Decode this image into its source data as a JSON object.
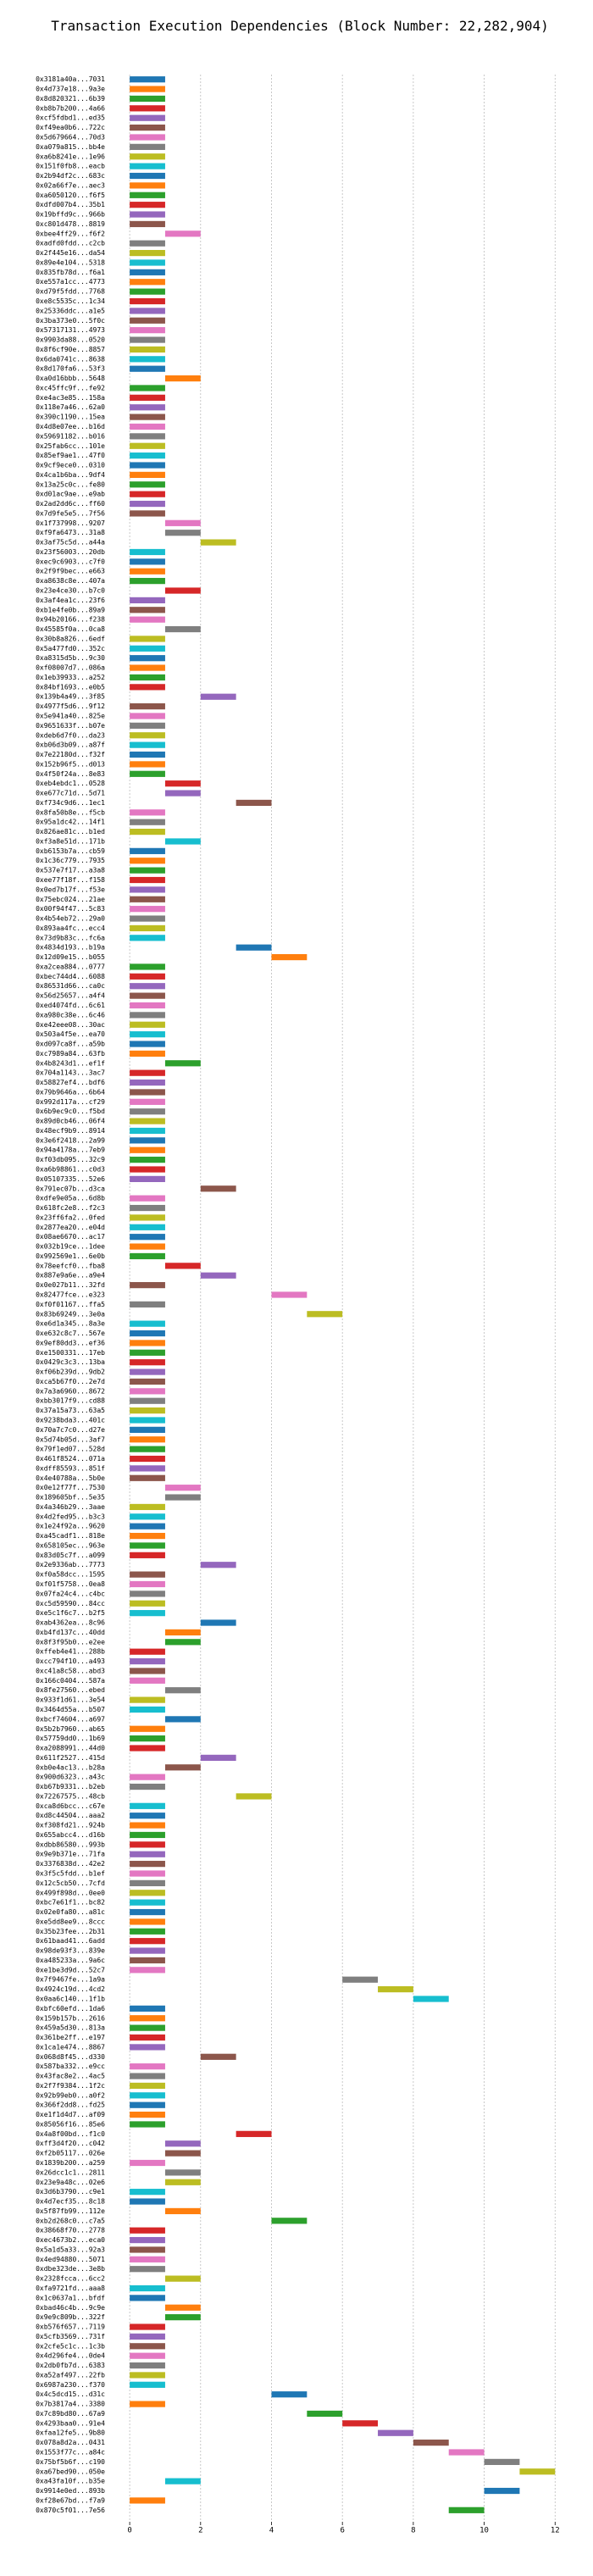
{
  "chart_data": {
    "type": "gantt",
    "title": "Transaction Execution Dependencies (Block Number: 22,282,904)",
    "categories": [
      "0x3181a40a...7031",
      "0x4d737e18...9a3e",
      "0x8d820321...6b39",
      "0xb8b7b200...4a66",
      "0xcf5fdbd1...ed35",
      "0xf49ea0b6...722c",
      "0x5d679664...70d3",
      "0xa079a815...bb4e",
      "0xa6b8241e...1e96",
      "0x151f0fb8...eacb",
      "0x2b94df2c...683c",
      "0x02a66f7e...aec3",
      "0xa6050120...f6f5",
      "0xdfd007b4...35b1",
      "0x19bffd9c...966b",
      "0xc801d478...8819",
      "0xbee4ff29...f6f2",
      "0xadfd0fdd...c2cb",
      "0x2f445e16...da54",
      "0x89e4e104...5318",
      "0x835fb78d...f6a1",
      "0xe557a1cc...4773",
      "0xd79f5fdd...7768",
      "0xe8c5535c...1c34",
      "0x25336ddc...a1e5",
      "0x3ba373e0...5f0c",
      "0x57317131...4973",
      "0x9903da88...0520",
      "0x8f6cf90e...8857",
      "0x6da0741c...8638",
      "0x8d170fa6...53f3",
      "0xa0d16bbb...5648",
      "0xc45ffc9f...fe92",
      "0xe4ac3e85...158a",
      "0x118e7a46...62a0",
      "0x390c1190...15ea",
      "0x4d8e07ee...b16d",
      "0x59691182...b016",
      "0x25fab6cc...101e",
      "0x85ef9ae1...47f0",
      "0x9cf9ece0...0310",
      "0x4ca1b6ba...9df4",
      "0x13a25c0c...fe80",
      "0xd01ac9ae...e9ab",
      "0x2ad2dd6c...ff60",
      "0x7d9fe5e5...7f56",
      "0x1f737998...9207",
      "0xf9fa6473...31a8",
      "0x3af75c5d...a44a",
      "0x23f56003...20db",
      "0xec9c6903...c7f0",
      "0x2f9f9bec...e663",
      "0xa8638c8e...407a",
      "0x23e4ce30...b7c0",
      "0x3af4ea1c...23f6",
      "0xb1e4fe0b...89a9",
      "0x94b20166...f238",
      "0x45585f0a...0ca8",
      "0x30b8a826...6edf",
      "0x5a477fd0...352c",
      "0xa8315d5b...9c30",
      "0xf08007d7...086a",
      "0x1eb39933...a252",
      "0x84bf1693...e0b5",
      "0x139b4a49...3f85",
      "0x4977f5d6...9f12",
      "0x5e941a40...825e",
      "0x9651633f...b07e",
      "0xdeb6d7f0...da23",
      "0xb06d3b09...a87f",
      "0x7e22180d...f32f",
      "0x152b96f5...d013",
      "0x4f50f24a...8e83",
      "0xeb4ebdc1...0528",
      "0xe677c71d...5d71",
      "0xf734c9d6...1ec1",
      "0x8fa50b8e...f5cb",
      "0x95a1dc42...14f1",
      "0x826ae81c...b1ed",
      "0xf3a8e51d...171b",
      "0xb6153b7a...cb59",
      "0x1c36c779...7935",
      "0x537e7f17...a3a8",
      "0xee77f18f...f158",
      "0x0ed7b17f...f53e",
      "0x75ebc024...21ae",
      "0x00f94f47...5c83",
      "0x4b54eb72...29a0",
      "0x893aa4fc...ecc4",
      "0x73d9b83c...fc6a",
      "0x4834d193...b19a",
      "0x12d09e15...b055",
      "0xa2cea884...0777",
      "0xbec744d4...6088",
      "0x86531d66...ca0c",
      "0x56d25657...a4f4",
      "0xed4074fd...6c61",
      "0xa980c38e...6c46",
      "0xe42eee08...30ac",
      "0x503a4f5e...ea70",
      "0xd097ca8f...a59b",
      "0xc7989a84...63fb",
      "0x4b8243d1...ef1f",
      "0x704a1143...3ac7",
      "0x58827ef4...bdf6",
      "0x79b9646a...6b64",
      "0x992d117a...cf29",
      "0x6b9ec9c0...f5bd",
      "0x89d0cb46...06f4",
      "0x48ecf9b9...8914",
      "0x3e6f2418...2a99",
      "0x94a4178a...7eb9",
      "0xf03db095...32c9",
      "0xa6b98861...c0d3",
      "0x05107335...52e6",
      "0x791ec07b...d3ca",
      "0xdfe9e05a...6d8b",
      "0x618fc2e8...f2c3",
      "0x23ff6fa2...0fed",
      "0x2877ea20...e04d",
      "0x08ae6670...ac17",
      "0x032b19ce...1dee",
      "0x992569e1...6e0b",
      "0x78eefcf0...fba8",
      "0x887e9a6e...a9e4",
      "0x0e027b11...32fd",
      "0x82477fce...e323",
      "0xf0f01167...ffa5",
      "0x83b69249...3e0a",
      "0xe6d1a345...8a3e",
      "0xe632c8c7...567e",
      "0x9ef80dd3...ef36",
      "0xe1500331...17eb",
      "0x0429c3c3...13ba",
      "0xf06b239d...9db2",
      "0xca5b67f0...2e7d",
      "0x7a3a6960...8672",
      "0xbb3017f9...cd88",
      "0x37a15a73...63a5",
      "0x9238bda3...401c",
      "0x70a7c7c0...d27e",
      "0x5d74b05d...3af7",
      "0x79f1ed07...528d",
      "0x461f8524...071a",
      "0xdff85593...851f",
      "0x4e40788a...5b0e",
      "0x0e12f77f...7530",
      "0x189605bf...5e35",
      "0x4a346b29...3aae",
      "0x4d2fed95...b3c3",
      "0x1e24f92a...9620",
      "0xa45cadf1...818e",
      "0x658105ec...963e",
      "0x83d05c7f...a099",
      "0x2e9336ab...7773",
      "0xf0a58dcc...1595",
      "0xf01f5758...0ea8",
      "0x07fa24c4...c4bc",
      "0xc5d59590...84cc",
      "0xe5c1f6c7...b2f5",
      "0xab4362ea...8c96",
      "0xb4fd137c...40dd",
      "0x8f3f95b0...e2ee",
      "0xffeb4e41...288b",
      "0xcc794f10...a493",
      "0xc41a8c58...abd3",
      "0x166c0404...587a",
      "0x8fe27560...ebed",
      "0x933f1d61...3e54",
      "0x3464d55a...b507",
      "0xbcf74604...a697",
      "0x5b2b7960...ab65",
      "0x57759dd0...1b69",
      "0xa2088991...44d0",
      "0x611f2527...415d",
      "0xb0e4ac13...b28a",
      "0x900d6323...a43c",
      "0xb67b9331...b2eb",
      "0x72267575...48cb",
      "0xca8d6bcc...c67e",
      "0xd8c44504...aaa2",
      "0xf308fd21...924b",
      "0x655abcc4...d16b",
      "0xdbb86580...993b",
      "0x9e9b371e...71fa",
      "0x3376838d...42e2",
      "0x3f5c5fdd...b1ef",
      "0x12c5cb50...7cfd",
      "0x499f898d...0ee0",
      "0xbc7e61f1...bc82",
      "0x02e0fa80...a81c",
      "0xe5dd8ee9...8ccc",
      "0x35b23fee...2b31",
      "0x61baad41...6add",
      "0x98de93f3...839e",
      "0xa485233a...9a6c",
      "0xe1be3d9d...52c7",
      "0x7f9467fe...1a9a",
      "0x4924c19d...4cd2",
      "0x0aa6c140...1f1b",
      "0xbfc60efd...1da6",
      "0x159b157b...2616",
      "0x459a5d30...813a",
      "0x361be2ff...e197",
      "0x1ca1e474...8867",
      "0x068d8f45...d330",
      "0x587ba332...e9cc",
      "0x43fac8e2...4ac5",
      "0x2f7f9384...1f2c",
      "0x92b99eb0...a0f2",
      "0x366f2dd8...fd25",
      "0xe1f1d4d7...af09",
      "0x85056f16...85e6",
      "0x4a8f00bd...f1c0",
      "0xff3d4f20...c042",
      "0xf2b05117...026e",
      "0x1839b200...a259",
      "0x26dcc1c1...2811",
      "0x23e9a48c...02e6",
      "0x3d6b3790...c9e1",
      "0x4d7ecf35...8c18",
      "0x5f87fb99...112e",
      "0xb2d268c0...c7a5",
      "0x38668f70...2778",
      "0xec4673b2...eca0",
      "0x5a1d5a33...92a3",
      "0x4ed94880...5071",
      "0xdbe323de...3e8b",
      "0x2328fcca...6cc2",
      "0xfa9721fd...aaa8",
      "0x1c0637a1...bfdf",
      "0xbad46c4b...9c9e",
      "0x9e9c809b...322f",
      "0xb576f657...7119",
      "0x5cfb3569...731f",
      "0x2cfe5c1c...1c3b",
      "0x4d296fe4...0de4",
      "0x2db0fb7d...6383",
      "0xa52af497...22fb",
      "0x6987a230...f370",
      "0x4c5dcd15...d31c",
      "0x7b3817a4...3380",
      "0x7c89bd80...67a9",
      "0x4293baa0...91e4",
      "0xfaa12fe5...9b80",
      "0x078a8d2a...0431",
      "0x1553f77c...a84c",
      "0x75bf5b6f...c190",
      "0xa67bed90...050e",
      "0xa43fa10f...b35e",
      "0x9914e0ed...893b",
      "0xf28e67bd...f7a9",
      "0x870c5f01...7e56"
    ],
    "start": [
      0,
      0,
      0,
      0,
      0,
      0,
      0,
      0,
      0,
      0,
      0,
      0,
      0,
      0,
      0,
      0,
      1,
      0,
      0,
      0,
      0,
      0,
      0,
      0,
      0,
      0,
      0,
      0,
      0,
      0,
      0,
      1,
      0,
      0,
      0,
      0,
      0,
      0,
      0,
      0,
      0,
      0,
      0,
      0,
      0,
      0,
      1,
      1,
      2,
      0,
      0,
      0,
      0,
      1,
      0,
      0,
      0,
      1,
      0,
      0,
      0,
      0,
      0,
      0,
      2,
      0,
      0,
      0,
      0,
      0,
      0,
      0,
      0,
      1,
      1,
      3,
      0,
      0,
      0,
      1,
      0,
      0,
      0,
      0,
      0,
      0,
      0,
      0,
      0,
      0,
      3,
      4,
      0,
      0,
      0,
      0,
      0,
      0,
      0,
      0,
      0,
      0,
      1,
      0,
      0,
      0,
      0,
      0,
      0,
      0,
      0,
      0,
      0,
      0,
      0,
      2,
      0,
      0,
      0,
      0,
      0,
      0,
      0,
      1,
      2,
      0,
      4,
      0,
      5,
      0,
      0,
      0,
      0,
      0,
      0,
      0,
      0,
      0,
      0,
      0,
      0,
      0,
      0,
      0,
      0,
      0,
      1,
      1,
      0,
      0,
      0,
      0,
      0,
      0,
      2,
      0,
      0,
      0,
      0,
      0,
      2,
      1,
      1,
      0,
      0,
      0,
      0,
      1,
      0,
      0,
      1,
      0,
      0,
      0,
      2,
      1,
      0,
      0,
      3,
      0,
      0,
      0,
      0,
      0,
      0,
      0,
      0,
      0,
      0,
      0,
      0,
      0,
      0,
      0,
      0,
      0,
      0,
      6,
      7,
      8,
      0,
      0,
      0,
      0,
      0,
      2,
      0,
      0,
      0,
      0,
      0,
      0,
      0,
      3,
      1,
      1,
      0,
      1,
      1,
      0,
      0,
      1,
      4,
      0,
      0,
      0,
      0,
      0,
      1,
      0,
      0,
      1,
      1,
      0,
      0,
      0,
      0,
      0,
      0,
      0,
      4,
      0,
      5,
      6,
      7,
      8,
      9,
      10,
      11,
      1,
      10,
      0,
      9
    ],
    "end": [
      1,
      1,
      1,
      1,
      1,
      1,
      1,
      1,
      1,
      1,
      1,
      1,
      1,
      1,
      1,
      1,
      2,
      1,
      1,
      1,
      1,
      1,
      1,
      1,
      1,
      1,
      1,
      1,
      1,
      1,
      1,
      2,
      1,
      1,
      1,
      1,
      1,
      1,
      1,
      1,
      1,
      1,
      1,
      1,
      1,
      1,
      2,
      2,
      3,
      1,
      1,
      1,
      1,
      2,
      1,
      1,
      1,
      2,
      1,
      1,
      1,
      1,
      1,
      1,
      3,
      1,
      1,
      1,
      1,
      1,
      1,
      1,
      1,
      2,
      2,
      4,
      1,
      1,
      1,
      2,
      1,
      1,
      1,
      1,
      1,
      1,
      1,
      1,
      1,
      1,
      4,
      5,
      1,
      1,
      1,
      1,
      1,
      1,
      1,
      1,
      1,
      1,
      2,
      1,
      1,
      1,
      1,
      1,
      1,
      1,
      1,
      1,
      1,
      1,
      1,
      3,
      1,
      1,
      1,
      1,
      1,
      1,
      1,
      2,
      3,
      1,
      5,
      1,
      6,
      1,
      1,
      1,
      1,
      1,
      1,
      1,
      1,
      1,
      1,
      1,
      1,
      1,
      1,
      1,
      1,
      1,
      2,
      2,
      1,
      1,
      1,
      1,
      1,
      1,
      3,
      1,
      1,
      1,
      1,
      1,
      3,
      2,
      2,
      1,
      1,
      1,
      1,
      2,
      1,
      1,
      2,
      1,
      1,
      1,
      3,
      2,
      1,
      1,
      4,
      1,
      1,
      1,
      1,
      1,
      1,
      1,
      1,
      1,
      1,
      1,
      1,
      1,
      1,
      1,
      1,
      1,
      1,
      7,
      8,
      9,
      1,
      1,
      1,
      1,
      1,
      3,
      1,
      1,
      1,
      1,
      1,
      1,
      1,
      4,
      2,
      2,
      1,
      2,
      2,
      1,
      1,
      2,
      5,
      1,
      1,
      1,
      1,
      1,
      2,
      1,
      1,
      2,
      2,
      1,
      1,
      1,
      1,
      1,
      1,
      1,
      5,
      1,
      6,
      7,
      8,
      9,
      10,
      11,
      12,
      2,
      11,
      1,
      10
    ],
    "colors": [
      "#1f77b4",
      "#ff7f0e",
      "#2ca02c",
      "#d62728",
      "#9467bd",
      "#8c564b",
      "#e377c2",
      "#7f7f7f",
      "#bcbd22",
      "#17becf"
    ],
    "xlim": [
      -0.6,
      12.4
    ],
    "xticks": [
      0,
      2,
      4,
      6,
      8,
      10,
      12
    ],
    "grid": true
  }
}
